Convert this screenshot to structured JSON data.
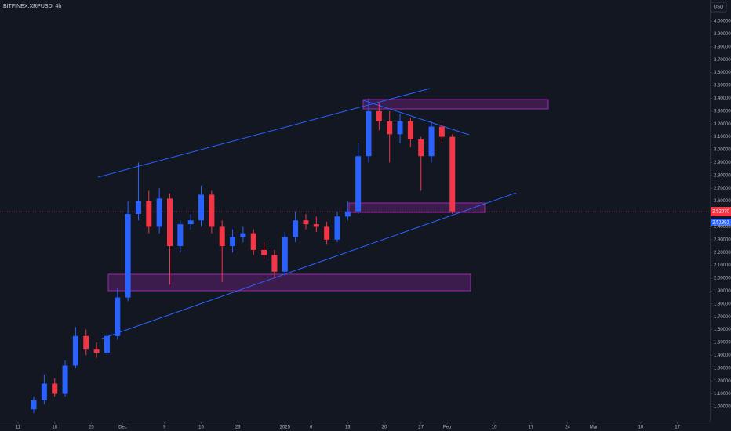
{
  "chart_data": {
    "type": "candlestick",
    "title": "BITFINEX:XRPUSD, 4h",
    "currency": "USD",
    "price_labels": [
      "2.52070",
      "2.51891"
    ],
    "x": [
      3,
      5,
      7,
      9,
      11,
      13,
      15,
      17,
      19,
      21,
      23,
      25,
      27,
      29,
      31,
      33,
      35,
      37,
      39,
      41,
      43,
      45,
      47,
      49,
      51,
      53,
      55,
      57,
      59,
      61,
      63,
      65,
      67,
      69,
      71,
      73,
      75,
      77,
      79,
      81,
      83
    ],
    "open": [
      0.98,
      1.05,
      1.18,
      1.1,
      1.32,
      1.55,
      1.45,
      1.42,
      1.55,
      1.85,
      2.5,
      2.6,
      2.4,
      2.62,
      2.25,
      2.42,
      2.45,
      2.65,
      2.4,
      2.25,
      2.32,
      2.35,
      2.22,
      2.18,
      2.05,
      2.32,
      2.45,
      2.42,
      2.4,
      2.3,
      2.48,
      2.52,
      2.95,
      3.3,
      3.22,
      3.12,
      3.22,
      3.08,
      2.95,
      3.18,
      3.1
    ],
    "high": [
      1.08,
      1.25,
      1.22,
      1.36,
      1.62,
      1.6,
      1.5,
      1.58,
      1.92,
      2.6,
      2.9,
      2.68,
      2.7,
      2.66,
      2.45,
      2.5,
      2.72,
      2.68,
      2.45,
      2.38,
      2.4,
      2.38,
      2.28,
      2.22,
      2.36,
      2.52,
      2.5,
      2.48,
      2.44,
      2.52,
      2.6,
      3.05,
      3.4,
      3.36,
      3.3,
      3.28,
      3.25,
      3.1,
      3.22,
      3.2,
      3.12
    ],
    "low": [
      0.95,
      1.02,
      1.08,
      1.08,
      1.3,
      1.4,
      1.38,
      1.4,
      1.52,
      1.82,
      2.45,
      2.35,
      2.35,
      1.95,
      2.2,
      2.38,
      2.4,
      2.35,
      1.97,
      2.2,
      2.28,
      2.18,
      2.15,
      2.0,
      2.02,
      2.28,
      2.38,
      2.36,
      2.26,
      2.28,
      2.45,
      2.5,
      2.9,
      3.15,
      2.9,
      3.05,
      3.02,
      2.68,
      2.9,
      3.05,
      2.5
    ],
    "close": [
      1.05,
      1.18,
      1.1,
      1.32,
      1.55,
      1.45,
      1.42,
      1.55,
      1.85,
      2.5,
      2.6,
      2.4,
      2.62,
      2.25,
      2.42,
      2.45,
      2.65,
      2.4,
      2.25,
      2.32,
      2.35,
      2.22,
      2.18,
      2.05,
      2.32,
      2.45,
      2.42,
      2.4,
      2.3,
      2.48,
      2.52,
      2.95,
      3.3,
      3.22,
      3.12,
      3.22,
      3.08,
      2.95,
      3.18,
      3.1,
      2.52
    ],
    "up_color": "#2962ff",
    "down_color": "#f23645",
    "xlim": [
      -3.45,
      132.2
    ],
    "ylim": [
      0.884,
      4.165
    ],
    "xticks": [
      {
        "value": 0,
        "label": "11"
      },
      {
        "value": 7,
        "label": "18"
      },
      {
        "value": 14,
        "label": "25"
      },
      {
        "value": 20,
        "label": "Dec"
      },
      {
        "value": 28,
        "label": "9"
      },
      {
        "value": 35,
        "label": "16"
      },
      {
        "value": 42,
        "label": "23"
      },
      {
        "value": 51,
        "label": "2025"
      },
      {
        "value": 56,
        "label": "6"
      },
      {
        "value": 63,
        "label": "13"
      },
      {
        "value": 70,
        "label": "20"
      },
      {
        "value": 77,
        "label": "27"
      },
      {
        "value": 82,
        "label": "Feb"
      },
      {
        "value": 91,
        "label": "10"
      },
      {
        "value": 98,
        "label": "17"
      },
      {
        "value": 105,
        "label": "24"
      },
      {
        "value": 110,
        "label": "Mar"
      },
      {
        "value": 119,
        "label": "10"
      },
      {
        "value": 126,
        "label": "17"
      }
    ],
    "yticks": [
      {
        "value": 1.0,
        "label": "1.00000"
      },
      {
        "value": 1.1,
        "label": "1.10000"
      },
      {
        "value": 1.2,
        "label": "1.20000"
      },
      {
        "value": 1.3,
        "label": "1.30000"
      },
      {
        "value": 1.4,
        "label": "1.40000"
      },
      {
        "value": 1.5,
        "label": "1.50000"
      },
      {
        "value": 1.6,
        "label": "1.60000"
      },
      {
        "value": 1.7,
        "label": "1.70000"
      },
      {
        "value": 1.8,
        "label": "1.80000"
      },
      {
        "value": 1.9,
        "label": "1.90000"
      },
      {
        "value": 2.0,
        "label": "2.00000"
      },
      {
        "value": 2.1,
        "label": "2.10000"
      },
      {
        "value": 2.2,
        "label": "2.20000"
      },
      {
        "value": 2.3,
        "label": "2.30000"
      },
      {
        "value": 2.4,
        "label": "2.40000"
      },
      {
        "value": 2.6,
        "label": "2.60000"
      },
      {
        "value": 2.7,
        "label": "2.70000"
      },
      {
        "value": 2.8,
        "label": "2.80000"
      },
      {
        "value": 2.9,
        "label": "2.90000"
      },
      {
        "value": 3.0,
        "label": "3.00000"
      },
      {
        "value": 3.1,
        "label": "3.10000"
      },
      {
        "value": 3.2,
        "label": "3.20000"
      },
      {
        "value": 3.3,
        "label": "3.30000"
      },
      {
        "value": 3.4,
        "label": "3.40000"
      },
      {
        "value": 3.5,
        "label": "3.50000"
      },
      {
        "value": 3.6,
        "label": "3.60000"
      },
      {
        "value": 3.7,
        "label": "3.70000"
      },
      {
        "value": 3.8,
        "label": "3.80000"
      },
      {
        "value": 3.9,
        "label": "3.90000"
      },
      {
        "value": 4.0,
        "label": "4.00000"
      }
    ]
  }
}
